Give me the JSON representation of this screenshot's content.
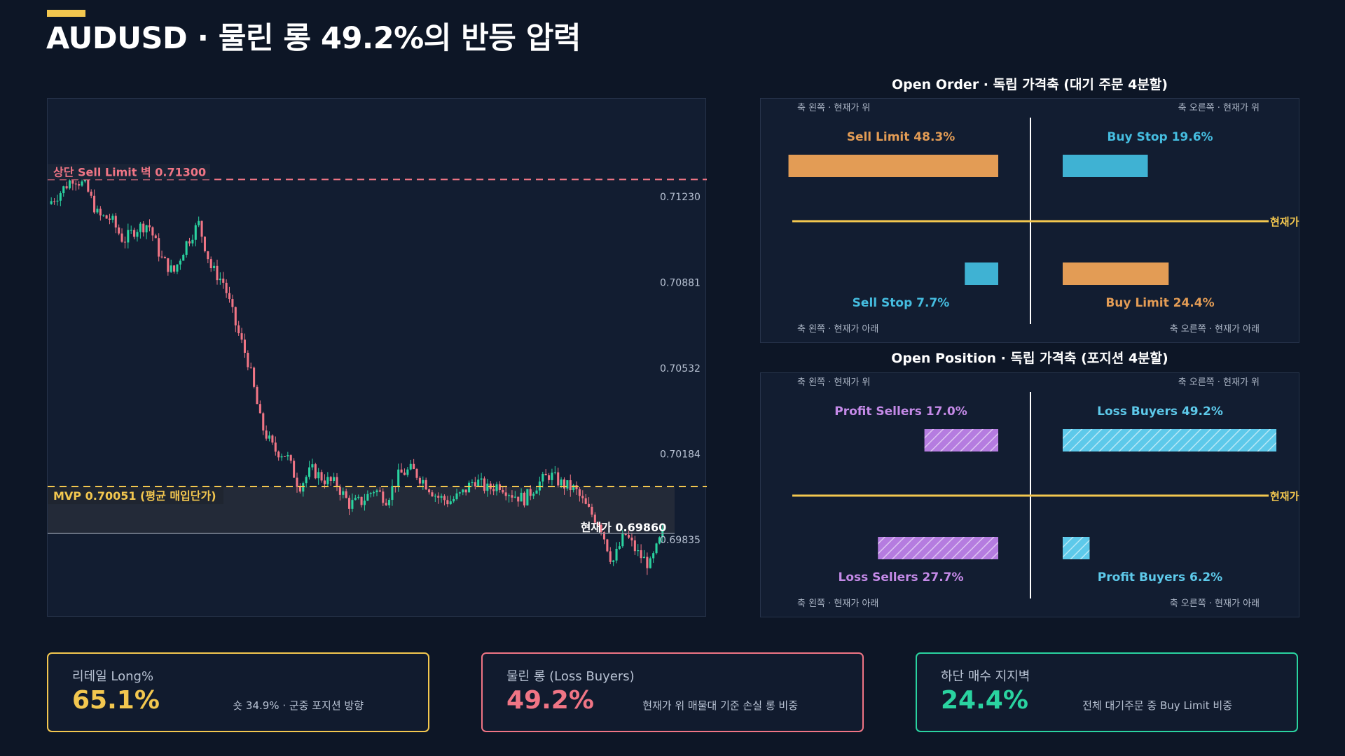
{
  "page": {
    "title": "AUDUSD · 물린 롱 49.2%의 반등 압력"
  },
  "colors": {
    "background": "#0d1626",
    "panel": "#121d31",
    "accent_yellow": "#f3c74f",
    "up_candle": "#2ad3a0",
    "down_candle": "#f07585",
    "sell_limit_line": "#f07585",
    "mvp_line": "#f3c74f",
    "orange": "#e39c55",
    "blue": "#3fb2d3",
    "purple": "#b57ce0",
    "light_blue": "#5dc9ea"
  },
  "chart_data": [
    {
      "type": "candlestick",
      "symbol": "AUDUSD",
      "y_ticks": [
        "0.71230",
        "0.70881",
        "0.70532",
        "0.70184",
        "0.69835"
      ],
      "ylim": [
        0.6955,
        0.716
      ],
      "close_path": [
        0.712,
        0.7125,
        0.7131,
        0.7127,
        0.7115,
        0.7114,
        0.7105,
        0.711,
        0.7112,
        0.7098,
        0.7092,
        0.7104,
        0.7112,
        0.7094,
        0.7088,
        0.707,
        0.7055,
        0.703,
        0.702,
        0.7018,
        0.7005,
        0.7012,
        0.7008,
        0.7006,
        0.6998,
        0.6999,
        0.7004,
        0.7,
        0.701,
        0.7012,
        0.7007,
        0.7001,
        0.6999,
        0.7002,
        0.7008,
        0.7004,
        0.7006,
        0.7002,
        0.7,
        0.7006,
        0.701,
        0.7006,
        0.7004,
        0.6996,
        0.699,
        0.6974,
        0.6986,
        0.6978,
        0.6973,
        0.6986
      ],
      "annotations": [
        {
          "label": "상단 Sell Limit 벽 0.71300",
          "value": 0.713
        },
        {
          "label": "MVP 0.70051 (평균 매입단가)",
          "value": 0.70051
        },
        {
          "label": "현재가 0.69860",
          "value": 0.6986
        }
      ]
    },
    {
      "type": "quadrant-bar",
      "title": "Open Order · 독립 가격축 (대기 주문 4분할)",
      "quadrants": [
        {
          "name": "Sell Limit",
          "label": "Sell Limit 48.3%",
          "value": 48.3,
          "side": "left",
          "zone": "above",
          "color": "#e39c55",
          "label_color": "#e39c55"
        },
        {
          "name": "Buy Stop",
          "label": "Buy Stop 19.6%",
          "value": 19.6,
          "side": "right",
          "zone": "above",
          "color": "#3fb2d3",
          "label_color": "#45bde0"
        },
        {
          "name": "Sell Stop",
          "label": "Sell Stop 7.7%",
          "value": 7.7,
          "side": "left",
          "zone": "below",
          "color": "#3fb2d3",
          "label_color": "#45bde0"
        },
        {
          "name": "Buy Limit",
          "label": "Buy Limit 24.4%",
          "value": 24.4,
          "side": "right",
          "zone": "below",
          "color": "#e39c55",
          "label_color": "#e39c55"
        }
      ],
      "corner_labels": [
        "축 왼쪽 · 현재가 위",
        "축 오른쪽 · 현재가 위",
        "축 왼쪽 · 현재가 아래",
        "축 오른쪽 · 현재가 아래"
      ],
      "current_price_label": "현재가",
      "hatched": false
    },
    {
      "type": "quadrant-bar",
      "title": "Open Position · 독립 가격축 (포지션 4분할)",
      "quadrants": [
        {
          "name": "Profit Sellers",
          "label": "Profit Sellers 17.0%",
          "value": 17.0,
          "side": "left",
          "zone": "above",
          "color": "#b57ce0",
          "label_color": "#c58ae8"
        },
        {
          "name": "Loss Buyers",
          "label": "Loss Buyers 49.2%",
          "value": 49.2,
          "side": "right",
          "zone": "above",
          "color": "#5dc9ea",
          "label_color": "#5dc9ea"
        },
        {
          "name": "Loss Sellers",
          "label": "Loss Sellers 27.7%",
          "value": 27.7,
          "side": "left",
          "zone": "below",
          "color": "#b57ce0",
          "label_color": "#c58ae8"
        },
        {
          "name": "Profit Buyers",
          "label": "Profit Buyers 6.2%",
          "value": 6.2,
          "side": "right",
          "zone": "below",
          "color": "#5dc9ea",
          "label_color": "#5dc9ea"
        }
      ],
      "corner_labels": [
        "축 왼쪽 · 현재가 위",
        "축 오른쪽 · 현재가 위",
        "축 왼쪽 · 현재가 아래",
        "축 오른쪽 · 현재가 아래"
      ],
      "current_price_label": "현재가",
      "hatched": true
    }
  ],
  "kpis": [
    {
      "label": "리테일 Long%",
      "value": "65.1%",
      "note": "숏 34.9% · 군중 포지션 방향",
      "color": "#f3c74f"
    },
    {
      "label": "물린 롱 (Loss Buyers)",
      "value": "49.2%",
      "note": "현재가 위 매물대 기준 손실 롱 비중",
      "color": "#f07585"
    },
    {
      "label": "하단 매수 지지벽",
      "value": "24.4%",
      "note": "전체 대기주문 중 Buy Limit 비중",
      "color": "#2ad3a0"
    }
  ]
}
